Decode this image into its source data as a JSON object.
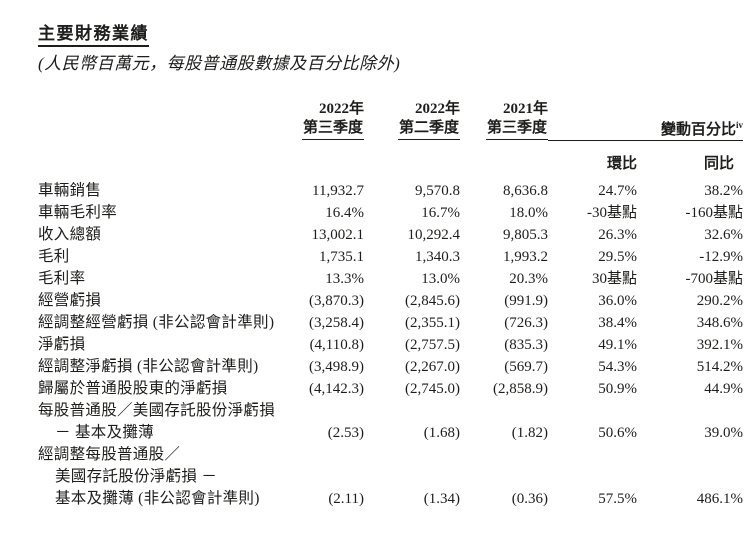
{
  "page": {
    "title": "主要財務業績",
    "subtitle": "(人民幣百萬元，每股普通股數據及百分比除外)"
  },
  "table": {
    "header": {
      "col_groups": [
        {
          "year": "2022年",
          "quarter": "第三季度"
        },
        {
          "year": "2022年",
          "quarter": "第二季度"
        },
        {
          "year": "2021年",
          "quarter": "第三季度"
        }
      ],
      "change_label": "變動百分比",
      "change_superscript": "iv",
      "sub_cols": [
        "環比",
        "同比"
      ]
    },
    "rows": [
      {
        "label": "車輛銷售",
        "indent": 0,
        "values": [
          "11,932.7",
          "9,570.8",
          "8,636.8",
          "24.7%",
          "38.2%"
        ]
      },
      {
        "label": "車輛毛利率",
        "indent": 0,
        "values": [
          "16.4%",
          "16.7%",
          "18.0%",
          "-30基點",
          "-160基點"
        ]
      },
      {
        "label": "收入總額",
        "indent": 0,
        "values": [
          "13,002.1",
          "10,292.4",
          "9,805.3",
          "26.3%",
          "32.6%"
        ]
      },
      {
        "label": "毛利",
        "indent": 0,
        "values": [
          "1,735.1",
          "1,340.3",
          "1,993.2",
          "29.5%",
          "-12.9%"
        ]
      },
      {
        "label": "毛利率",
        "indent": 0,
        "values": [
          "13.3%",
          "13.0%",
          "20.3%",
          "30基點",
          "-700基點"
        ]
      },
      {
        "label": "經營虧損",
        "indent": 0,
        "values": [
          "(3,870.3)",
          "(2,845.6)",
          "(991.9)",
          "36.0%",
          "290.2%"
        ]
      },
      {
        "label": "經調整經營虧損 (非公認會計準則)",
        "indent": 0,
        "values": [
          "(3,258.4)",
          "(2,355.1)",
          "(726.3)",
          "38.4%",
          "348.6%"
        ]
      },
      {
        "label": "淨虧損",
        "indent": 0,
        "values": [
          "(4,110.8)",
          "(2,757.5)",
          "(835.3)",
          "49.1%",
          "392.1%"
        ]
      },
      {
        "label": "經調整淨虧損 (非公認會計準則)",
        "indent": 0,
        "values": [
          "(3,498.9)",
          "(2,267.0)",
          "(569.7)",
          "54.3%",
          "514.2%"
        ]
      },
      {
        "label": "歸屬於普通股股東的淨虧損",
        "indent": 0,
        "values": [
          "(4,142.3)",
          "(2,745.0)",
          "(2,858.9)",
          "50.9%",
          "44.9%"
        ]
      },
      {
        "label": "每股普通股／美國存託股份淨虧損",
        "indent": 0,
        "values": [
          "",
          "",
          "",
          "",
          ""
        ]
      },
      {
        "label": "－ 基本及攤薄",
        "indent": 1,
        "values": [
          "(2.53)",
          "(1.68)",
          "(1.82)",
          "50.6%",
          "39.0%"
        ]
      },
      {
        "label": "經調整每股普通股／",
        "indent": 0,
        "values": [
          "",
          "",
          "",
          "",
          ""
        ]
      },
      {
        "label": "美國存託股份淨虧損 －",
        "indent": 1,
        "values": [
          "",
          "",
          "",
          "",
          ""
        ]
      },
      {
        "label": "基本及攤薄 (非公認會計準則)",
        "indent": 1,
        "values": [
          "(2.11)",
          "(1.34)",
          "(0.36)",
          "57.5%",
          "486.1%"
        ]
      }
    ]
  }
}
